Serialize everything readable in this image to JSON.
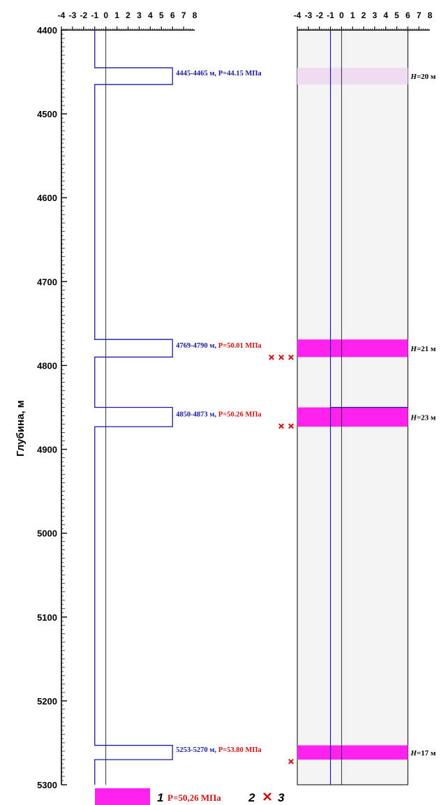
{
  "chart_data": {
    "type": "well-log",
    "y_axis": {
      "label": "Глубина, м",
      "ticks": [
        "4400",
        "4500",
        "4600",
        "4700",
        "4800",
        "4900",
        "5000",
        "5100",
        "5200",
        "5300"
      ],
      "range": [
        4400,
        5300
      ],
      "direction": "depth increases downward"
    },
    "x_axis": {
      "ticks": [
        "-4",
        "-3",
        "-2",
        "-1",
        "0",
        "1",
        "2",
        "3",
        "4",
        "5",
        "6",
        "7",
        "8"
      ],
      "range": [
        -4,
        8
      ]
    },
    "left_panel": {
      "baseline_x": -1,
      "reference_x": 0,
      "intervals": [
        {
          "top": 4445,
          "bottom": 4465,
          "value_x": 6,
          "depth_text": "4445-4465 м, ",
          "pressure_text": "P=44.15 МПа",
          "pressure_color": "#1a1aa0",
          "crosses": 0
        },
        {
          "top": 4769,
          "bottom": 4790,
          "value_x": 6,
          "depth_text": "4769-4790 м, ",
          "pressure_text": "P=50.01 МПа",
          "pressure_color": "#cc1111",
          "crosses": 3
        },
        {
          "top": 4850,
          "bottom": 4873,
          "value_x": 6,
          "depth_text": "4850-4873 м, ",
          "pressure_text": "P=50.26 МПа",
          "pressure_color": "#cc1111",
          "crosses": 2
        },
        {
          "top": 5253,
          "bottom": 5270,
          "value_x": 6,
          "depth_text": "5253-5270 м, ",
          "pressure_text": "P=53.80 МПа",
          "pressure_color": "#cc1111",
          "crosses": 1
        }
      ]
    },
    "right_panel": {
      "layers": [
        {
          "top": 4445,
          "bottom": 4465,
          "thickness_label": "H=20 м",
          "fill": "#f0dcf0"
        },
        {
          "top": 4769,
          "bottom": 4790,
          "thickness_label": "H=21 м",
          "fill": "#ff22ee"
        },
        {
          "top": 4850,
          "bottom": 4873,
          "thickness_label": "H=23 м",
          "fill": "#ff22ee"
        },
        {
          "top": 5253,
          "bottom": 5270,
          "thickness_label": "H=17 м",
          "fill": "#ff22ee"
        }
      ]
    },
    "legend": {
      "items": [
        {
          "marker": "swatch",
          "color": "#ff22ee",
          "number": "1"
        },
        {
          "marker": "text",
          "text": "P=50,26 МПа",
          "color": "#cc1111",
          "number": "2"
        },
        {
          "marker": "cross",
          "color": "#cc1111",
          "number": "3"
        }
      ]
    },
    "colors": {
      "line": "#1a1aa0",
      "axis": "#000000",
      "magenta": "#ff22ee",
      "red": "#cc1111",
      "panel_bg": "#f4f4f4"
    }
  }
}
